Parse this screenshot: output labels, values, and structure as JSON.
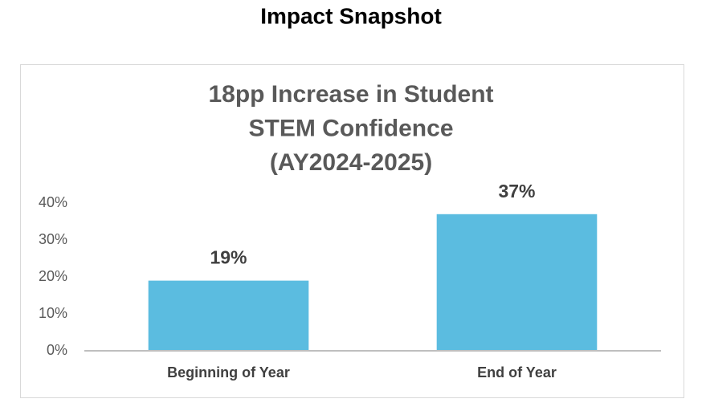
{
  "header": {
    "title": "Impact Snapshot"
  },
  "chart_data": {
    "type": "bar",
    "title": [
      "18pp Increase in Student",
      "STEM Confidence",
      "(AY2024-2025)"
    ],
    "categories": [
      "Beginning of Year",
      "End of Year"
    ],
    "values": [
      19,
      37
    ],
    "value_labels": [
      "19%",
      "37%"
    ],
    "color": "#5bbce0",
    "ylim": [
      0,
      40
    ],
    "yticks": [
      {
        "value": 0,
        "label": "0%"
      },
      {
        "value": 10,
        "label": "10%"
      },
      {
        "value": 20,
        "label": "20%"
      },
      {
        "value": 30,
        "label": "30%"
      },
      {
        "value": 40,
        "label": "40%"
      }
    ],
    "grid": false
  }
}
